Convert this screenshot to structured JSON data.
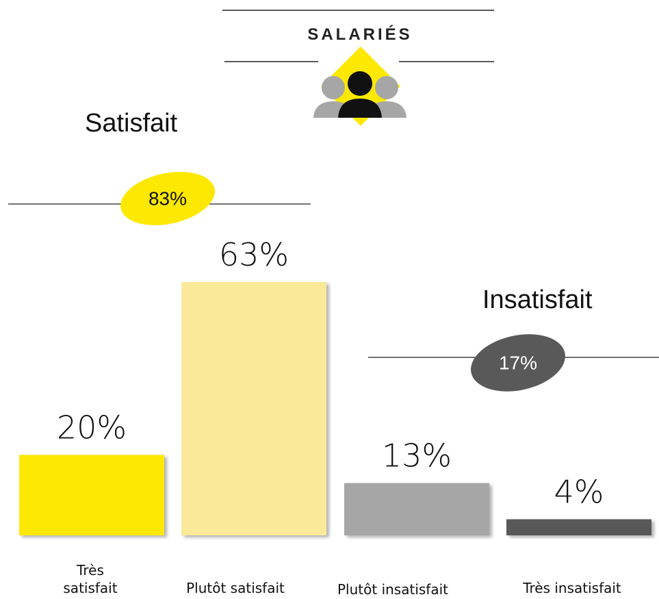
{
  "chart_data": {
    "type": "bar",
    "title": "SALARIÉS",
    "categories": [
      "Très satisfait",
      "Plutôt satisfait",
      "Plutôt insatisfait",
      "Très insatisfait"
    ],
    "values": [
      20,
      63,
      13,
      4
    ],
    "value_labels": [
      "20%",
      "63%",
      "13%",
      "4%"
    ],
    "colors": [
      "#fce800",
      "#fbe99a",
      "#a6a6a6",
      "#595959"
    ],
    "groups": [
      {
        "label": "Satisfait",
        "value": 83,
        "value_label": "83%",
        "color": "#fce800"
      },
      {
        "label": "Insatisfait",
        "value": 17,
        "value_label": "17%",
        "color": "#595959"
      }
    ]
  }
}
